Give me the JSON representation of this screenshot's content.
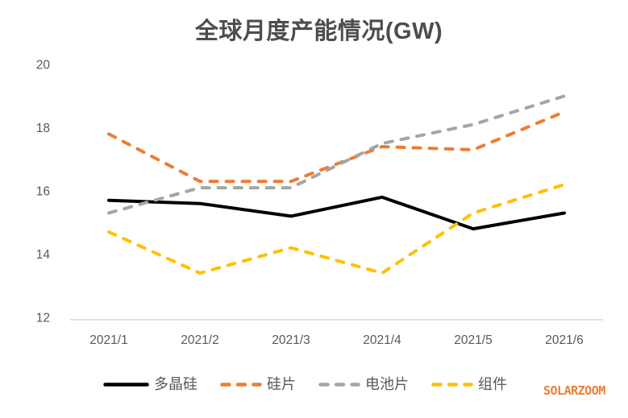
{
  "title": "全球月度产能情况(GW)",
  "watermark": "SOLARZOOM",
  "colors": {
    "background": "#ffffff",
    "title_text": "#4d4d4d",
    "axis_text": "#595959",
    "axis_line": "#d9d9d9",
    "watermark": "#ed7d31"
  },
  "chart_data": {
    "type": "line",
    "title": "全球月度产能情况(GW)",
    "categories": [
      "2021/1",
      "2021/2",
      "2021/3",
      "2021/4",
      "2021/5",
      "2021/6"
    ],
    "series": [
      {
        "name": "多晶硅",
        "color": "#000000",
        "dash": "solid",
        "values": [
          15.7,
          15.6,
          15.2,
          15.8,
          14.8,
          15.3
        ]
      },
      {
        "name": "硅片",
        "color": "#ed7d31",
        "dash": "dashed",
        "values": [
          17.8,
          16.3,
          16.3,
          17.4,
          17.3,
          18.5
        ]
      },
      {
        "name": "电池片",
        "color": "#a5a5a5",
        "dash": "dashed",
        "values": [
          15.3,
          16.1,
          16.1,
          17.5,
          18.1,
          19.0
        ]
      },
      {
        "name": "组件",
        "color": "#ffc000",
        "dash": "dashed",
        "values": [
          14.7,
          13.4,
          14.2,
          13.4,
          15.3,
          16.2
        ]
      }
    ],
    "xlabel": "",
    "ylabel": "",
    "ylim": [
      12,
      20
    ],
    "yticks": [
      12,
      14,
      16,
      18,
      20
    ],
    "grid": false,
    "legend_position": "bottom"
  }
}
